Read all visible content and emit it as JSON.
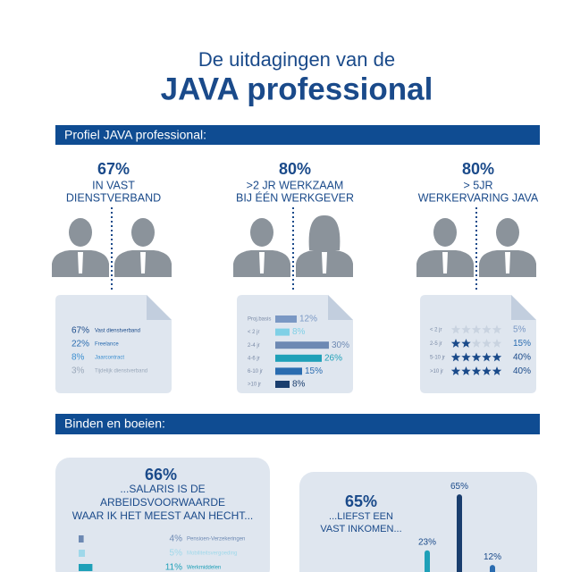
{
  "header": {
    "line1": "De uitdagingen van de",
    "line2": "JAVA professional"
  },
  "section1": {
    "title": "Profiel JAVA professional:",
    "columns": [
      {
        "stat": "67%",
        "lines": [
          "IN VAST",
          "DIENSTVERBAND"
        ],
        "rows": [
          {
            "value": "67%",
            "label": "Vast dienstverband"
          },
          {
            "value": "22%",
            "label": "Freelance"
          },
          {
            "value": "8%",
            "label": "Jaarcontract"
          },
          {
            "value": "3%",
            "label": "Tijdelijk dienstverband"
          }
        ]
      },
      {
        "stat": "80%",
        "lines": [
          ">2 JR WERKZAAM",
          "BIJ ÉÉN WERKGEVER"
        ],
        "rows": [
          {
            "label": "Proj.basis",
            "value": 12,
            "value_label": "12%"
          },
          {
            "label": "< 2 jr",
            "value": 8,
            "value_label": "8%"
          },
          {
            "label": "2-4 jr",
            "value": 30,
            "value_label": "30%"
          },
          {
            "label": "4-6 jr",
            "value": 26,
            "value_label": "26%"
          },
          {
            "label": "6-10 jr",
            "value": 15,
            "value_label": "15%"
          },
          {
            "label": ">10 jr",
            "value": 8,
            "value_label": "8%"
          }
        ]
      },
      {
        "stat": "80%",
        "lines": [
          "> 5JR",
          "WERKERVARING JAVA"
        ],
        "rows": [
          {
            "label": "< 2 jr",
            "value": "5%"
          },
          {
            "label": "2-5 jr",
            "value": "15%"
          },
          {
            "label": "5-10 jr",
            "value": "40%"
          },
          {
            "label": ">10 jr",
            "value": "40%"
          }
        ]
      }
    ]
  },
  "section2": {
    "title": "Binden en boeien:",
    "left": {
      "stat": "66%",
      "lines": [
        "...SALARIS IS DE",
        "ARBEIDSVOORWAARDE",
        "WAAR IK HET MEEST AAN HECHT..."
      ],
      "rows": [
        {
          "value": 4,
          "value_label": "4%",
          "label": "Pensioen-Verzekeringen"
        },
        {
          "value": 5,
          "value_label": "5%",
          "label": "Mobiliteitsvergoeding"
        },
        {
          "value": 11,
          "value_label": "11%",
          "label": "Werkmiddelen"
        }
      ]
    },
    "right": {
      "stat": "65%",
      "lines": [
        "...LIEFST  EEN",
        "VAST INKOMEN..."
      ],
      "bars": [
        {
          "value": 23,
          "value_label": "23%"
        },
        {
          "value": 65,
          "value_label": "65%"
        },
        {
          "value": 12,
          "value_label": "12%"
        }
      ]
    }
  }
}
